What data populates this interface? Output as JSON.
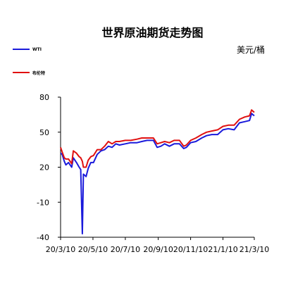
{
  "chart_data": {
    "type": "line",
    "title": "世界原油期货走势图",
    "unit": "美元/桶",
    "xlabel": "",
    "ylabel": "",
    "ylim": [
      -40,
      80
    ],
    "y_ticks": [
      80,
      50,
      20,
      -10,
      -40
    ],
    "x_ticks": [
      "20/3/10",
      "20/5/10",
      "20/7/10",
      "20/9/10",
      "20/11/10",
      "21/1/10",
      "21/3/10"
    ],
    "grid": false,
    "legend_position": "top-left",
    "series": [
      {
        "name": "WTI",
        "color": "#1a1adb",
        "points": [
          [
            "20/3/10",
            32
          ],
          [
            "20/3/13",
            31
          ],
          [
            "20/3/17",
            25
          ],
          [
            "20/3/20",
            22
          ],
          [
            "20/3/25",
            24
          ],
          [
            "20/3/31",
            20
          ],
          [
            "20/4/3",
            28
          ],
          [
            "20/4/9",
            24
          ],
          [
            "20/4/14",
            20
          ],
          [
            "20/4/17",
            18
          ],
          [
            "20/4/20",
            -37
          ],
          [
            "20/4/22",
            14
          ],
          [
            "20/4/27",
            12
          ],
          [
            "20/5/1",
            19
          ],
          [
            "20/5/6",
            24
          ],
          [
            "20/5/11",
            24
          ],
          [
            "20/5/18",
            31
          ],
          [
            "20/5/25",
            34
          ],
          [
            "20/6/1",
            35
          ],
          [
            "20/6/8",
            38
          ],
          [
            "20/6/15",
            37
          ],
          [
            "20/6/22",
            40
          ],
          [
            "20/6/29",
            39
          ],
          [
            "20/7/10",
            40
          ],
          [
            "20/7/20",
            41
          ],
          [
            "20/8/1",
            41
          ],
          [
            "20/8/10",
            42
          ],
          [
            "20/8/20",
            43
          ],
          [
            "20/9/1",
            43
          ],
          [
            "20/9/8",
            37
          ],
          [
            "20/9/15",
            38
          ],
          [
            "20/9/22",
            40
          ],
          [
            "20/10/1",
            38
          ],
          [
            "20/10/10",
            40
          ],
          [
            "20/10/20",
            40
          ],
          [
            "20/10/28",
            36
          ],
          [
            "20/11/2",
            37
          ],
          [
            "20/11/10",
            41
          ],
          [
            "20/11/20",
            42
          ],
          [
            "20/12/1",
            45
          ],
          [
            "20/12/10",
            47
          ],
          [
            "20/12/20",
            48
          ],
          [
            "20/12/31",
            48
          ],
          [
            "21/1/10",
            52
          ],
          [
            "21/1/20",
            53
          ],
          [
            "21/1/31",
            52
          ],
          [
            "21/2/10",
            58
          ],
          [
            "21/2/20",
            59
          ],
          [
            "21/3/1",
            60
          ],
          [
            "21/3/5",
            66
          ],
          [
            "21/3/10",
            64
          ]
        ]
      },
      {
        "name": "布伦特",
        "color": "#e01010",
        "points": [
          [
            "20/3/10",
            37
          ],
          [
            "20/3/13",
            33
          ],
          [
            "20/3/17",
            28
          ],
          [
            "20/3/20",
            27
          ],
          [
            "20/3/25",
            27
          ],
          [
            "20/3/31",
            23
          ],
          [
            "20/4/3",
            34
          ],
          [
            "20/4/9",
            32
          ],
          [
            "20/4/14",
            29
          ],
          [
            "20/4/17",
            28
          ],
          [
            "20/4/20",
            25
          ],
          [
            "20/4/22",
            20
          ],
          [
            "20/4/27",
            20
          ],
          [
            "20/5/1",
            26
          ],
          [
            "20/5/6",
            29
          ],
          [
            "20/5/11",
            30
          ],
          [
            "20/5/18",
            35
          ],
          [
            "20/5/25",
            35
          ],
          [
            "20/6/1",
            38
          ],
          [
            "20/6/8",
            42
          ],
          [
            "20/6/15",
            40
          ],
          [
            "20/6/22",
            42
          ],
          [
            "20/6/29",
            42
          ],
          [
            "20/7/10",
            43
          ],
          [
            "20/7/20",
            43
          ],
          [
            "20/8/1",
            44
          ],
          [
            "20/8/10",
            45
          ],
          [
            "20/8/20",
            45
          ],
          [
            "20/9/1",
            45
          ],
          [
            "20/9/8",
            40
          ],
          [
            "20/9/15",
            41
          ],
          [
            "20/9/22",
            42
          ],
          [
            "20/10/1",
            41
          ],
          [
            "20/10/10",
            43
          ],
          [
            "20/10/20",
            43
          ],
          [
            "20/10/28",
            38
          ],
          [
            "20/11/2",
            39
          ],
          [
            "20/11/10",
            43
          ],
          [
            "20/11/20",
            45
          ],
          [
            "20/12/1",
            48
          ],
          [
            "20/12/10",
            50
          ],
          [
            "20/12/20",
            51
          ],
          [
            "20/12/31",
            52
          ],
          [
            "21/1/10",
            55
          ],
          [
            "21/1/20",
            56
          ],
          [
            "21/1/31",
            56
          ],
          [
            "21/2/10",
            61
          ],
          [
            "21/2/20",
            63
          ],
          [
            "21/3/1",
            64
          ],
          [
            "21/3/5",
            69
          ],
          [
            "21/3/10",
            67
          ]
        ]
      }
    ]
  }
}
